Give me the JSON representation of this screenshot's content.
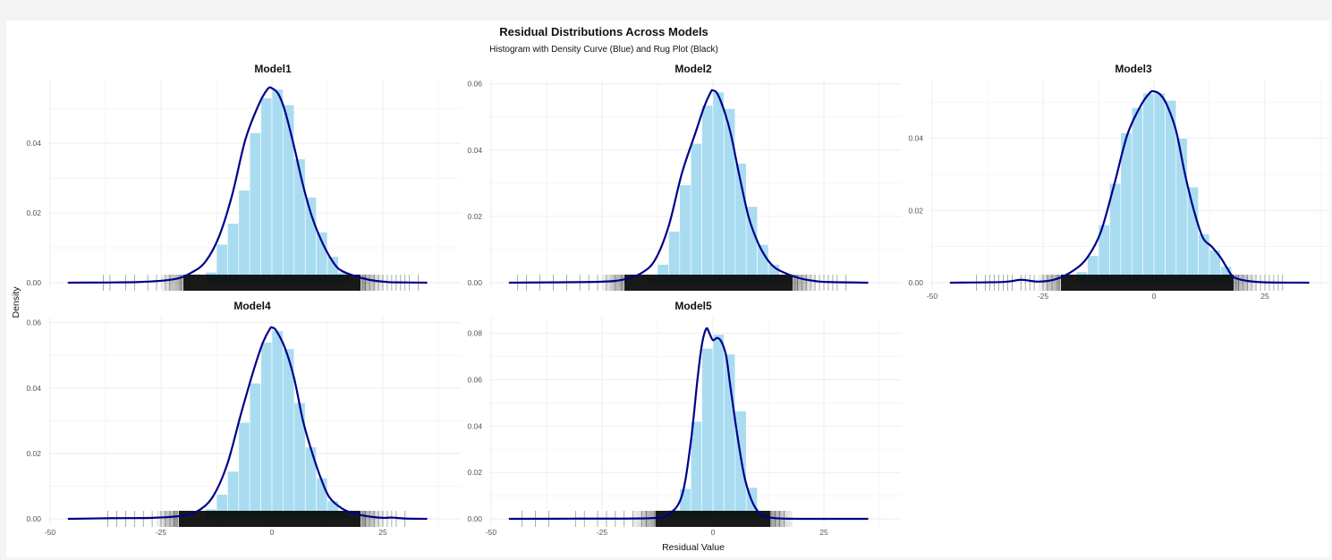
{
  "chart_data": {
    "type": "histogram",
    "title": "Residual Distributions Across Models",
    "subtitle": "Histogram with Density Curve (Blue) and Rug Plot (Black)",
    "xlabel": "Residual Value",
    "ylabel": "Density",
    "xlim": [
      -50,
      37
    ],
    "x_ticks": [
      "-50",
      "-25",
      "0",
      "25"
    ],
    "grid": true,
    "colors": {
      "bars": "#a9dcf1",
      "density": "#00008b",
      "rug": "#000000",
      "grid": "#ebebeb"
    },
    "panels": [
      {
        "name": "Model1",
        "ylim": [
          0,
          0.058
        ],
        "y_ticks": [
          "0.00",
          "0.02",
          "0.04"
        ],
        "bins": [
          [
            -15,
            -12.5,
            0.003
          ],
          [
            -12.5,
            -10,
            0.011
          ],
          [
            -10,
            -7.5,
            0.017
          ],
          [
            -7.5,
            -5,
            0.0265
          ],
          [
            -5,
            -2.5,
            0.043
          ],
          [
            -2.5,
            0,
            0.053
          ],
          [
            0,
            2.5,
            0.0555
          ],
          [
            2.5,
            5,
            0.051
          ],
          [
            5,
            7.5,
            0.0355
          ],
          [
            7.5,
            10,
            0.0245
          ],
          [
            10,
            12.5,
            0.0145
          ],
          [
            12.5,
            15,
            0.0075
          ],
          [
            15,
            17.5,
            0.003
          ]
        ],
        "density": [
          [
            -46,
            0
          ],
          [
            -30,
            0.0002
          ],
          [
            -22,
            0.001
          ],
          [
            -18,
            0.003
          ],
          [
            -15,
            0.006
          ],
          [
            -12,
            0.013
          ],
          [
            -9,
            0.025
          ],
          [
            -6,
            0.041
          ],
          [
            -3,
            0.051
          ],
          [
            -1,
            0.0555
          ],
          [
            0,
            0.0558
          ],
          [
            1.5,
            0.054
          ],
          [
            3,
            0.049
          ],
          [
            5,
            0.039
          ],
          [
            7,
            0.028
          ],
          [
            9,
            0.019
          ],
          [
            11,
            0.0125
          ],
          [
            13,
            0.0075
          ],
          [
            15,
            0.004
          ],
          [
            18,
            0.0022
          ],
          [
            22,
            0.0008
          ],
          [
            26,
            0.0002
          ],
          [
            28,
            0.0001
          ],
          [
            35,
            0
          ]
        ],
        "rug_core": [
          -20,
          20
        ],
        "rug_outliers": [
          -38,
          -36.5,
          -33,
          -31,
          -28,
          -26,
          -24,
          -23,
          21,
          22,
          23,
          24,
          25,
          26,
          27,
          28,
          29,
          30,
          31,
          33
        ]
      },
      {
        "name": "Model2",
        "ylim": [
          0,
          0.061
        ],
        "y_ticks": [
          "0.00",
          "0.02",
          "0.04",
          "0.06"
        ],
        "bins": [
          [
            -15,
            -12.5,
            0.0015
          ],
          [
            -12.5,
            -10,
            0.0055
          ],
          [
            -10,
            -7.5,
            0.0155
          ],
          [
            -7.5,
            -5,
            0.0295
          ],
          [
            -5,
            -2.5,
            0.042
          ],
          [
            -2.5,
            0,
            0.0535
          ],
          [
            0,
            2.5,
            0.0575
          ],
          [
            2.5,
            5,
            0.0525
          ],
          [
            5,
            7.5,
            0.036
          ],
          [
            7.5,
            10,
            0.023
          ],
          [
            10,
            12.5,
            0.0115
          ],
          [
            12.5,
            15,
            0.0055
          ],
          [
            15,
            17.5,
            0.002
          ]
        ],
        "density": [
          [
            -46,
            0
          ],
          [
            -36,
            0.0001
          ],
          [
            -25,
            0.0003
          ],
          [
            -20,
            0.001
          ],
          [
            -16,
            0.003
          ],
          [
            -13,
            0.007
          ],
          [
            -10,
            0.017
          ],
          [
            -7,
            0.033
          ],
          [
            -4,
            0.045
          ],
          [
            -2,
            0.053
          ],
          [
            -0.5,
            0.0575
          ],
          [
            0,
            0.058
          ],
          [
            1,
            0.057
          ],
          [
            2.5,
            0.052
          ],
          [
            4,
            0.045
          ],
          [
            6,
            0.032
          ],
          [
            8,
            0.02
          ],
          [
            10,
            0.0125
          ],
          [
            12,
            0.0075
          ],
          [
            14,
            0.0045
          ],
          [
            17,
            0.0025
          ],
          [
            20,
            0.0012
          ],
          [
            23,
            0.0005
          ],
          [
            26,
            0.0002
          ],
          [
            35,
            0
          ]
        ],
        "rug_core": [
          -20,
          18
        ],
        "rug_outliers": [
          -44,
          -42,
          -39,
          -36,
          -33,
          -30,
          -28,
          -26,
          -24,
          -22,
          19,
          20,
          21,
          22,
          23,
          24,
          25,
          26,
          27,
          28,
          30
        ]
      },
      {
        "name": "Model3",
        "ylim": [
          0,
          0.056
        ],
        "y_ticks": [
          "0.00",
          "0.02",
          "0.04"
        ],
        "bins": [
          [
            -17.5,
            -15,
            0.003
          ],
          [
            -15,
            -12.5,
            0.0075
          ],
          [
            -12.5,
            -10,
            0.016
          ],
          [
            -10,
            -7.5,
            0.0275
          ],
          [
            -7.5,
            -5,
            0.0415
          ],
          [
            -5,
            -2.5,
            0.0485
          ],
          [
            -2.5,
            0,
            0.0525
          ],
          [
            0,
            2.5,
            0.0525
          ],
          [
            2.5,
            5,
            0.0505
          ],
          [
            5,
            7.5,
            0.04
          ],
          [
            7.5,
            10,
            0.0265
          ],
          [
            10,
            12.5,
            0.0135
          ],
          [
            12.5,
            15,
            0.009
          ],
          [
            15,
            17.5,
            0.0045
          ]
        ],
        "density": [
          [
            -46,
            0
          ],
          [
            -34,
            0.0002
          ],
          [
            -30,
            0.0008
          ],
          [
            -26,
            0.0003
          ],
          [
            -22,
            0.001
          ],
          [
            -18,
            0.0035
          ],
          [
            -15,
            0.007
          ],
          [
            -12,
            0.014
          ],
          [
            -9,
            0.027
          ],
          [
            -6,
            0.041
          ],
          [
            -3,
            0.049
          ],
          [
            -1,
            0.0525
          ],
          [
            0,
            0.053
          ],
          [
            1.5,
            0.052
          ],
          [
            3,
            0.049
          ],
          [
            5,
            0.042
          ],
          [
            7,
            0.03
          ],
          [
            9,
            0.02
          ],
          [
            11,
            0.0125
          ],
          [
            13,
            0.01
          ],
          [
            15,
            0.007
          ],
          [
            16.5,
            0.004
          ],
          [
            18,
            0.0015
          ],
          [
            21,
            0.0005
          ],
          [
            25,
            0.0001
          ],
          [
            35,
            0
          ]
        ],
        "rug_core": [
          -21,
          18
        ],
        "rug_outliers": [
          -40,
          -38,
          -37,
          -36,
          -35,
          -34,
          -33,
          -32,
          -30,
          -29,
          -28,
          -27,
          -25,
          -24,
          -23,
          19,
          20,
          21,
          22,
          23,
          24,
          25,
          26,
          27,
          28,
          29
        ]
      },
      {
        "name": "Model4",
        "ylim": [
          0,
          0.061
        ],
        "y_ticks": [
          "0.00",
          "0.02",
          "0.04",
          "0.06"
        ],
        "bins": [
          [
            -15,
            -12.5,
            0.003
          ],
          [
            -12.5,
            -10,
            0.0075
          ],
          [
            -10,
            -7.5,
            0.0145
          ],
          [
            -7.5,
            -5,
            0.0295
          ],
          [
            -5,
            -2.5,
            0.0415
          ],
          [
            -2.5,
            0,
            0.054
          ],
          [
            0,
            2.5,
            0.0575
          ],
          [
            2.5,
            5,
            0.052
          ],
          [
            5,
            7.5,
            0.0355
          ],
          [
            7.5,
            10,
            0.022
          ],
          [
            10,
            12.5,
            0.0125
          ],
          [
            12.5,
            15,
            0.0055
          ],
          [
            15,
            17.5,
            0.0025
          ]
        ],
        "density": [
          [
            -46,
            0
          ],
          [
            -36,
            0.0002
          ],
          [
            -27,
            0.0003
          ],
          [
            -20,
            0.001
          ],
          [
            -16,
            0.003
          ],
          [
            -13,
            0.0075
          ],
          [
            -10,
            0.017
          ],
          [
            -7,
            0.032
          ],
          [
            -4,
            0.046
          ],
          [
            -2,
            0.054
          ],
          [
            -0.5,
            0.058
          ],
          [
            0,
            0.0585
          ],
          [
            1,
            0.0575
          ],
          [
            3,
            0.052
          ],
          [
            5,
            0.043
          ],
          [
            7,
            0.03
          ],
          [
            9,
            0.0205
          ],
          [
            11,
            0.0125
          ],
          [
            13,
            0.0065
          ],
          [
            16,
            0.003
          ],
          [
            19,
            0.0015
          ],
          [
            22,
            0.0007
          ],
          [
            25,
            0.0003
          ],
          [
            27,
            0.0004
          ],
          [
            30,
            0.0001
          ],
          [
            35,
            0
          ]
        ],
        "rug_core": [
          -21,
          20
        ],
        "rug_outliers": [
          -37,
          -35,
          -33,
          -31,
          -29,
          -27,
          -25,
          -24,
          -23,
          -22,
          21,
          22,
          23,
          24,
          25,
          26,
          27,
          28,
          30
        ]
      },
      {
        "name": "Model5",
        "ylim": [
          0,
          0.086
        ],
        "y_ticks": [
          "0.00",
          "0.02",
          "0.04",
          "0.06",
          "0.08"
        ],
        "bins": [
          [
            -10,
            -7.5,
            0.004
          ],
          [
            -7.5,
            -5,
            0.013
          ],
          [
            -5,
            -2.5,
            0.042
          ],
          [
            -2.5,
            0,
            0.0735
          ],
          [
            0,
            2.5,
            0.0795
          ],
          [
            2.5,
            5,
            0.071
          ],
          [
            5,
            7.5,
            0.0465
          ],
          [
            7.5,
            10,
            0.0135
          ],
          [
            10,
            12.5,
            0.0025
          ]
        ],
        "density": [
          [
            -46,
            0
          ],
          [
            -30,
            0.0001
          ],
          [
            -14,
            0.0003
          ],
          [
            -10,
            0.002
          ],
          [
            -7,
            0.01
          ],
          [
            -5,
            0.033
          ],
          [
            -3.5,
            0.06
          ],
          [
            -2.5,
            0.075
          ],
          [
            -1.5,
            0.082
          ],
          [
            -0.8,
            0.08
          ],
          [
            0,
            0.077
          ],
          [
            1,
            0.078
          ],
          [
            2,
            0.076
          ],
          [
            3,
            0.07
          ],
          [
            4,
            0.056
          ],
          [
            5.5,
            0.036
          ],
          [
            7,
            0.019
          ],
          [
            8.5,
            0.009
          ],
          [
            10,
            0.0035
          ],
          [
            11.5,
            0.0012
          ],
          [
            14,
            0.0003
          ],
          [
            20,
            0
          ],
          [
            35,
            0
          ]
        ],
        "rug_core": [
          -13,
          13
        ],
        "rug_outliers": [
          -43,
          -40,
          -37,
          -31,
          -29,
          -26,
          -24,
          -22,
          -20,
          -18,
          -16,
          -15,
          14,
          15,
          16
        ]
      }
    ]
  }
}
